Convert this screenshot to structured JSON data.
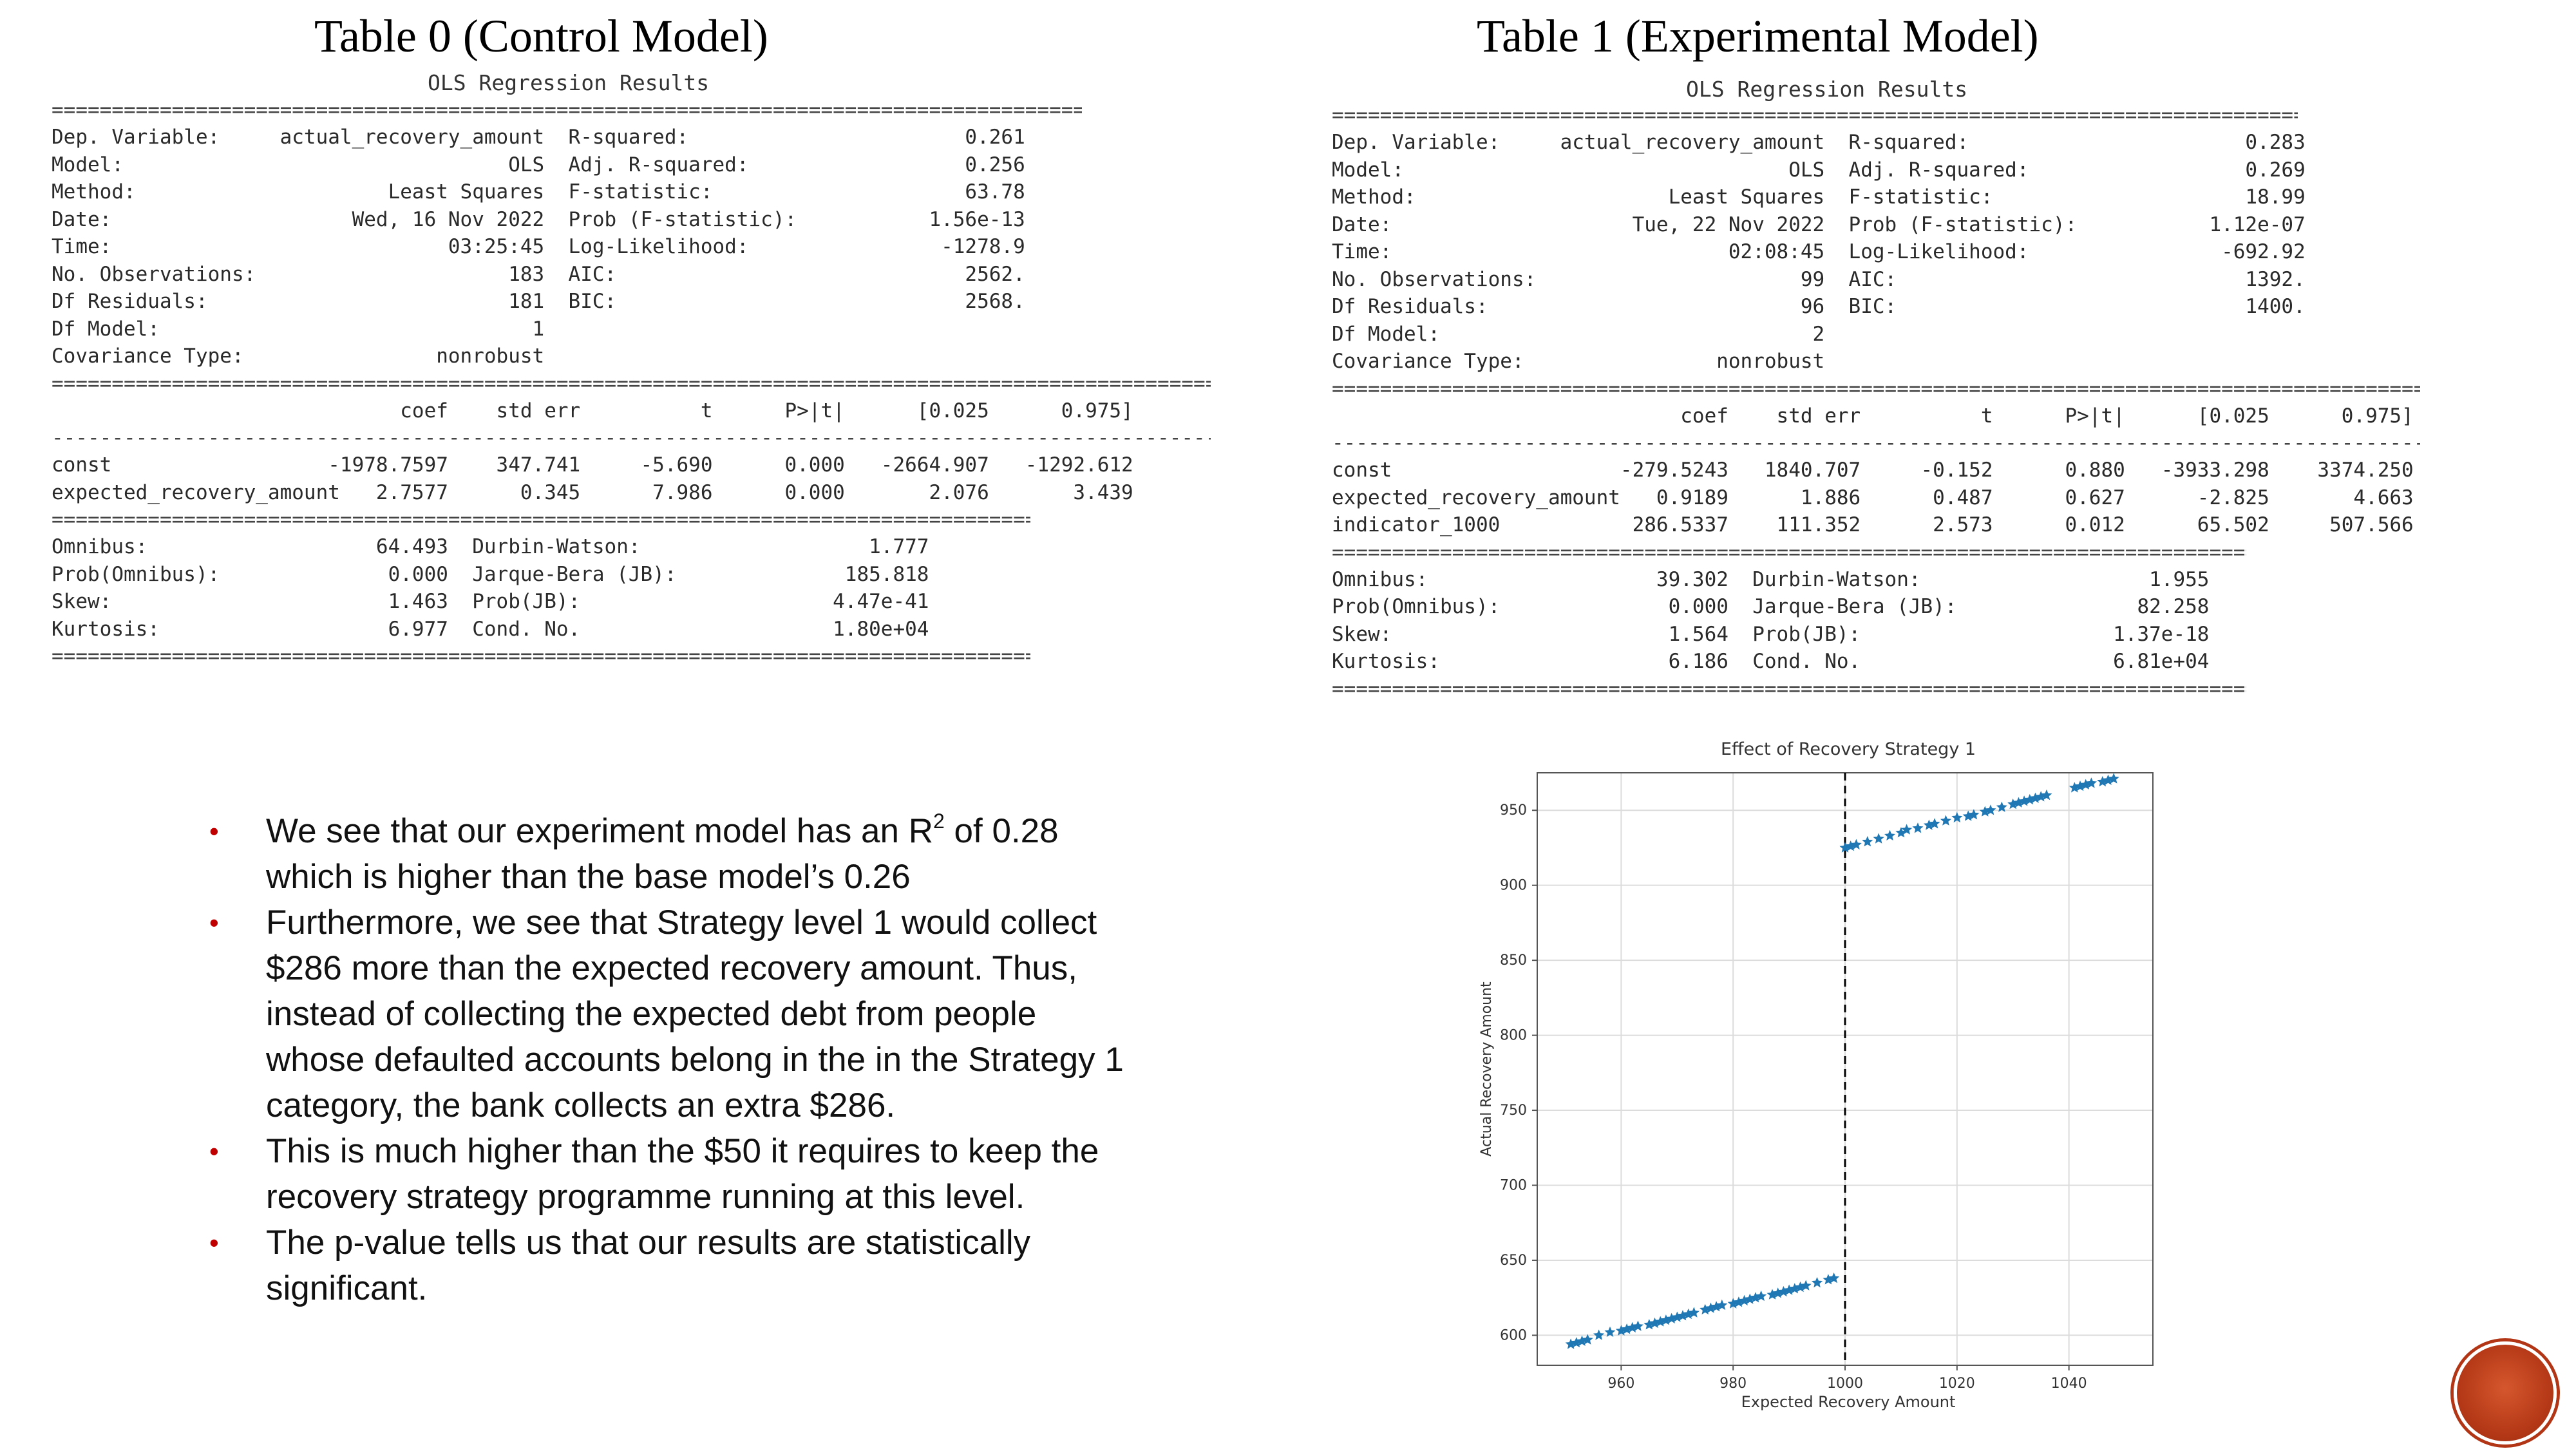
{
  "table0": {
    "heading": "Table 0 (Control Model)",
    "ols_title": "OLS Regression Results",
    "rule_eq": "======================================================================================================================================",
    "rule_dash": "--------------------------------------------------------------------------------------------------------------------------------------",
    "summary": "Dep. Variable:     actual_recovery_amount  R-squared:                       0.261\nModel:                                OLS  Adj. R-squared:                  0.256\nMethod:                     Least Squares  F-statistic:                     63.78\nDate:                    Wed, 16 Nov 2022  Prob (F-statistic):           1.56e-13\nTime:                            03:25:45  Log-Likelihood:                -1278.9\nNo. Observations:                     183  AIC:                             2562.\nDf Residuals:                         181  BIC:                             2568.\nDf Model:                               1\nCovariance Type:                nonrobust",
    "coef_header": "                             coef    std err          t      P>|t|      [0.025      0.975]",
    "coef_rows": "const                  -1978.7597    347.741     -5.690      0.000   -2664.907   -1292.612\nexpected_recovery_amount   2.7577      0.345      7.986      0.000       2.076       3.439",
    "diagnostics": "Omnibus:                   64.493  Durbin-Watson:                   1.777\nProb(Omnibus):              0.000  Jarque-Bera (JB):              185.818\nSkew:                       1.463  Prob(JB):                     4.47e-41\nKurtosis:                   6.977  Cond. No.                     1.80e+04"
  },
  "table1": {
    "heading": "Table 1 (Experimental Model)",
    "ols_title": "OLS Regression Results",
    "rule_eq": "======================================================================================================================================",
    "rule_dash": "--------------------------------------------------------------------------------------------------------------------------------------",
    "summary": "Dep. Variable:     actual_recovery_amount  R-squared:                       0.283\nModel:                                OLS  Adj. R-squared:                  0.269\nMethod:                     Least Squares  F-statistic:                     18.99\nDate:                    Tue, 22 Nov 2022  Prob (F-statistic):           1.12e-07\nTime:                            02:08:45  Log-Likelihood:                -692.92\nNo. Observations:                      99  AIC:                             1392.\nDf Residuals:                          96  BIC:                             1400.\nDf Model:                               2\nCovariance Type:                nonrobust",
    "coef_header": "                             coef    std err          t      P>|t|      [0.025      0.975]",
    "coef_rows": "const                   -279.5243   1840.707     -0.152      0.880   -3933.298    3374.250\nexpected_recovery_amount   0.9189      1.886      0.487      0.627      -2.825       4.663\nindicator_1000           286.5337    111.352      2.573      0.012      65.502     507.566",
    "diagnostics": "Omnibus:                   39.302  Durbin-Watson:                   1.955\nProb(Omnibus):              0.000  Jarque-Bera (JB):               82.258\nSkew:                       1.564  Prob(JB):                     1.37e-18\nKurtosis:                   6.186  Cond. No.                     6.81e+04"
  },
  "bullets": {
    "b1_pre": "We see that our experiment model has an R",
    "b1_sup": "2",
    "b1_post": " of 0.28 which is higher than the base model’s 0.26",
    "b2": "Furthermore, we see that Strategy level 1 would collect $286 more than the expected recovery amount. Thus, instead of collecting the expected debt from people whose defaulted accounts belong in the in the Strategy 1 category, the bank collects an extra $286.",
    "b3": "This is much higher than the $50 it requires to keep the recovery strategy programme running at this level.",
    "b4": "The p-value tells us that our results are statistically significant."
  },
  "chart_data": {
    "type": "scatter",
    "title": "Effect of Recovery Strategy 1",
    "xlabel": "Expected Recovery Amount",
    "ylabel": "Actual Recovery Amount",
    "xlim": [
      945,
      1055
    ],
    "ylim": [
      580,
      975
    ],
    "xticks": [
      960,
      980,
      1000,
      1020,
      1040
    ],
    "yticks": [
      600,
      650,
      700,
      750,
      800,
      850,
      900,
      950
    ],
    "grid": true,
    "marker": "*",
    "color": "#1f77b4",
    "threshold_x": 1000,
    "series": [
      {
        "x": [
          951,
          952,
          953,
          954,
          956,
          958,
          960,
          961,
          962,
          963,
          965,
          966,
          967,
          968,
          969,
          970,
          971,
          972,
          973,
          975,
          976,
          977,
          978,
          980,
          981,
          982,
          983,
          984,
          985,
          987,
          988,
          989,
          990,
          991,
          992,
          993,
          995,
          997,
          998
        ],
        "y": [
          594,
          595,
          596,
          597,
          600,
          602,
          603,
          604,
          605,
          606,
          607,
          608,
          609,
          610,
          611,
          612,
          613,
          614,
          615,
          617,
          618,
          619,
          620,
          621,
          622,
          623,
          624,
          625,
          626,
          627,
          628,
          629,
          630,
          631,
          632,
          633,
          635,
          637,
          638
        ]
      },
      {
        "x": [
          1000,
          1001,
          1002,
          1004,
          1006,
          1008,
          1010,
          1011,
          1013,
          1015,
          1016,
          1018,
          1020,
          1022,
          1023,
          1025,
          1026,
          1028,
          1030,
          1031,
          1032,
          1033,
          1034,
          1035,
          1036,
          1041,
          1042,
          1043,
          1044,
          1046,
          1047,
          1048
        ],
        "y": [
          925,
          926,
          927,
          929,
          931,
          933,
          935,
          937,
          938,
          940,
          941,
          943,
          945,
          946,
          947,
          949,
          950,
          952,
          954,
          955,
          956,
          957,
          958,
          959,
          960,
          965,
          966,
          967,
          968,
          969,
          970,
          971
        ]
      }
    ]
  }
}
